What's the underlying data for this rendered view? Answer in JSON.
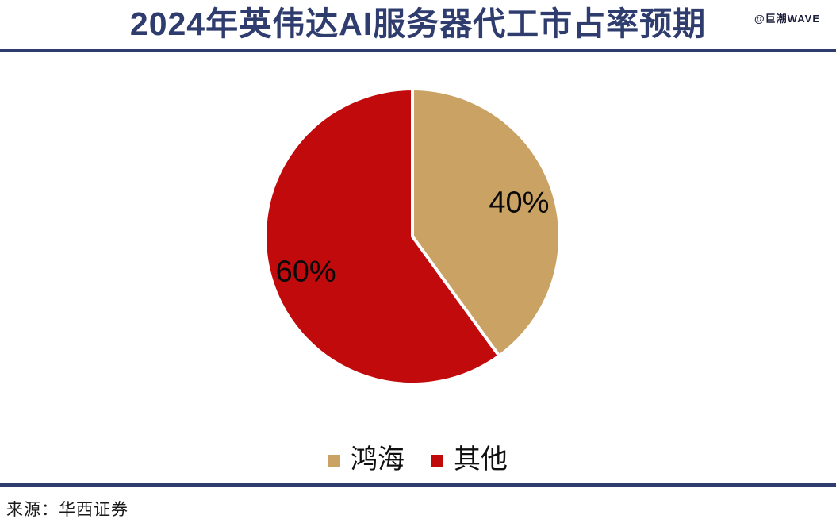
{
  "header": {
    "title": "2024年英伟达AI服务器代工市占率预期",
    "watermark": "@巨潮WAVE"
  },
  "chart_data": {
    "type": "pie",
    "title": "2024年英伟达AI服务器代工市占率预期",
    "slices": [
      {
        "label": "鸿海",
        "value": 40,
        "display": "40%",
        "color": "#C9A264"
      },
      {
        "label": "其他",
        "value": 60,
        "display": "60%",
        "color": "#C00A0B"
      }
    ],
    "start_angle_deg": 0,
    "direction": "clockwise",
    "data_labels": "inside",
    "legend_position": "bottom",
    "slice_gap_color": "#FFFFFF"
  },
  "footer": {
    "source": "来源：华西证券"
  },
  "colors": {
    "accent_navy": "#2F3C6E",
    "watermark_text": "#1B1F3B",
    "label_text": "#0A0A0A",
    "background": "#FFFFFF"
  }
}
